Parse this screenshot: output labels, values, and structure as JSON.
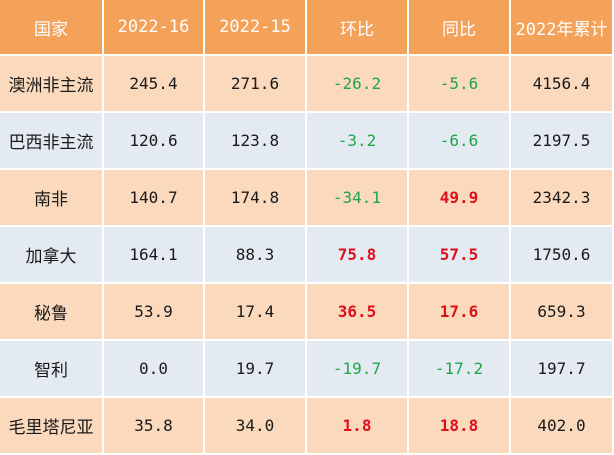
{
  "colors": {
    "header_bg": "#f4a25a",
    "row_odd_bg": "#fbd9bd",
    "row_even_bg": "#e4eaf2",
    "negative_text": "#1fa64a",
    "positive_text": "#e0101a"
  },
  "headers": [
    "国家",
    "2022-16",
    "2022-15",
    "环比",
    "同比",
    "2022年累计"
  ],
  "rows": [
    {
      "country": "澳洲非主流",
      "wk16": "245.4",
      "wk15": "271.6",
      "mom": "-26.2",
      "yoy": "-5.6",
      "ytd": "4156.4"
    },
    {
      "country": "巴西非主流",
      "wk16": "120.6",
      "wk15": "123.8",
      "mom": "-3.2",
      "yoy": "-6.6",
      "ytd": "2197.5"
    },
    {
      "country": "南非",
      "wk16": "140.7",
      "wk15": "174.8",
      "mom": "-34.1",
      "yoy": "49.9",
      "ytd": "2342.3"
    },
    {
      "country": "加拿大",
      "wk16": "164.1",
      "wk15": "88.3",
      "mom": "75.8",
      "yoy": "57.5",
      "ytd": "1750.6"
    },
    {
      "country": "秘鲁",
      "wk16": "53.9",
      "wk15": "17.4",
      "mom": "36.5",
      "yoy": "17.6",
      "ytd": "659.3"
    },
    {
      "country": "智利",
      "wk16": "0.0",
      "wk15": "19.7",
      "mom": "-19.7",
      "yoy": "-17.2",
      "ytd": "197.7"
    },
    {
      "country": "毛里塔尼亚",
      "wk16": "35.8",
      "wk15": "34.0",
      "mom": "1.8",
      "yoy": "18.8",
      "ytd": "402.0"
    }
  ]
}
